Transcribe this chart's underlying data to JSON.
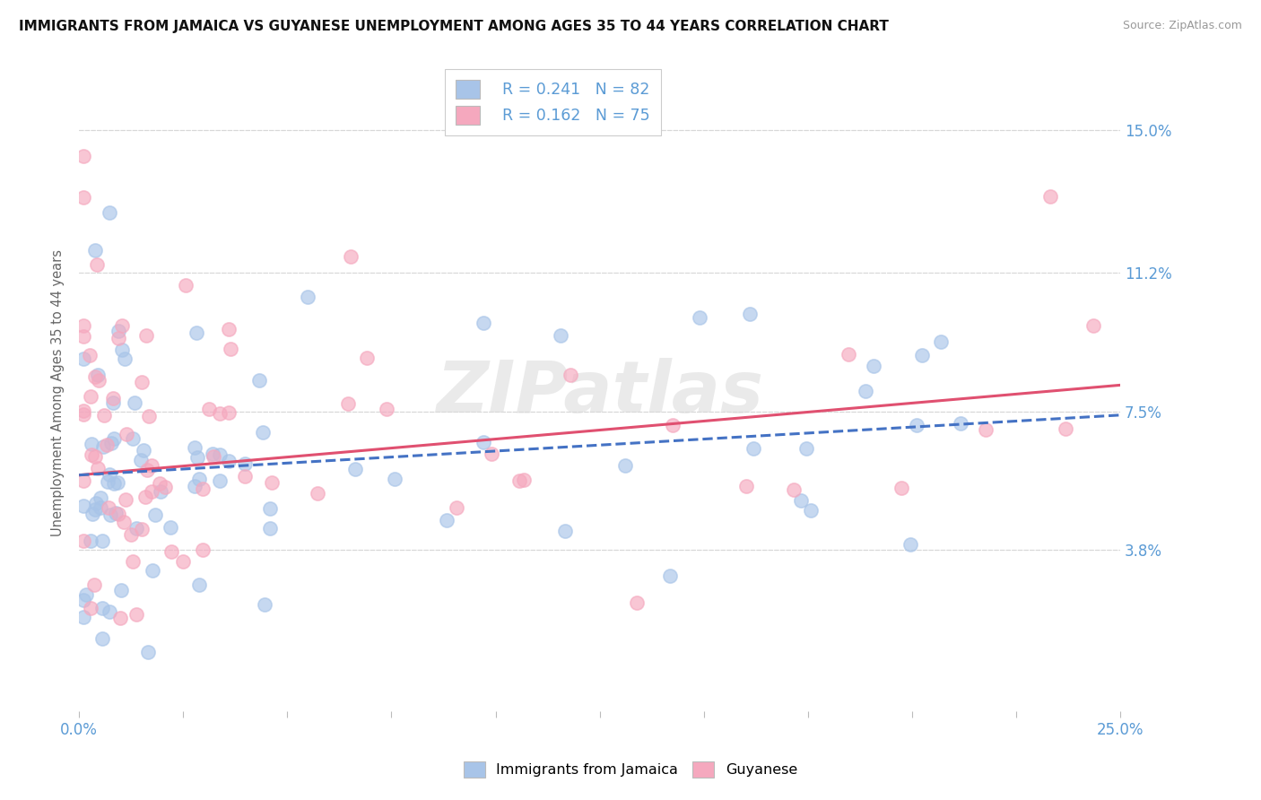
{
  "title": "IMMIGRANTS FROM JAMAICA VS GUYANESE UNEMPLOYMENT AMONG AGES 35 TO 44 YEARS CORRELATION CHART",
  "source": "Source: ZipAtlas.com",
  "ylabel": "Unemployment Among Ages 35 to 44 years",
  "xlim": [
    0.0,
    0.25
  ],
  "ylim": [
    -0.005,
    0.165
  ],
  "ytick_labels_right": [
    "3.8%",
    "7.5%",
    "11.2%",
    "15.0%"
  ],
  "ytick_vals_right": [
    0.038,
    0.075,
    0.112,
    0.15
  ],
  "jamaica_color": "#a8c4e8",
  "guyanese_color": "#f5a8be",
  "jamaica_line_color": "#4472c4",
  "guyanese_line_color": "#e05070",
  "r_jamaica": 0.241,
  "n_jamaica": 82,
  "r_guyanese": 0.162,
  "n_guyanese": 75,
  "background_color": "#ffffff",
  "grid_color": "#d8d8d8",
  "axis_label_color": "#5b9bd5",
  "watermark_color": "#e0e0e0"
}
